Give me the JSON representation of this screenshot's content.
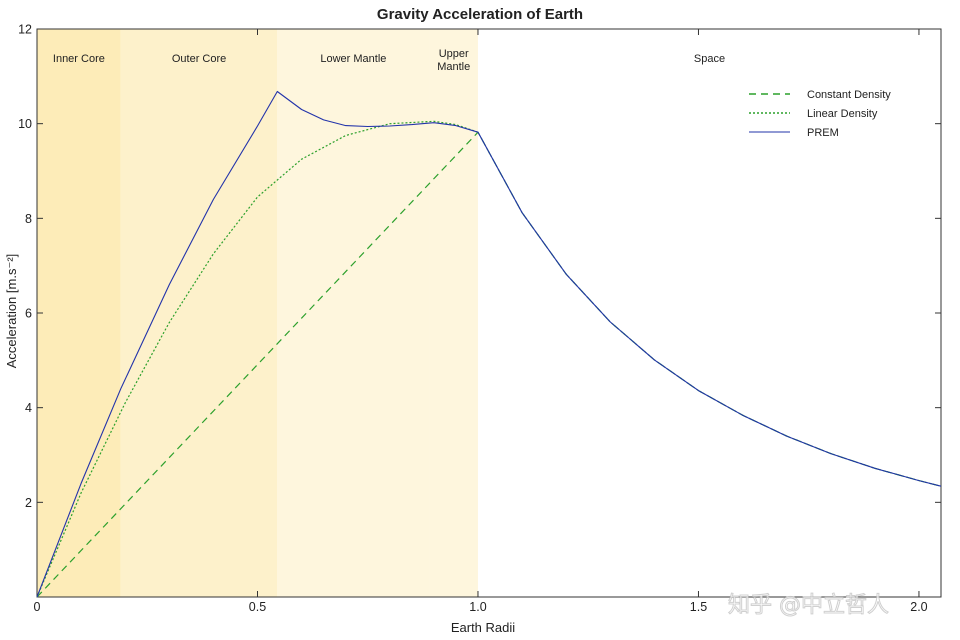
{
  "chart_data": {
    "type": "line",
    "title": "Gravity Acceleration of Earth",
    "xlabel": "Earth Radii",
    "ylabel": "Acceleration [m.s⁻²]",
    "xlim": [
      0,
      2.05
    ],
    "ylim": [
      0,
      12
    ],
    "x_ticks": [
      0,
      0.5,
      1.0,
      1.5,
      2.0
    ],
    "x_tick_labels": [
      "0",
      "0.5",
      "1.0",
      "1.5",
      "2.0"
    ],
    "y_ticks": [
      2,
      4,
      6,
      8,
      10,
      12
    ],
    "y_tick_labels": [
      "2",
      "4",
      "6",
      "8",
      "10",
      "12"
    ],
    "grid": false,
    "legend_position": "top-right",
    "regions": [
      {
        "label": "Inner Core",
        "x0": 0,
        "x1": 0.19,
        "color": "#fdecb8"
      },
      {
        "label": "Outer Core",
        "x0": 0.19,
        "x1": 0.545,
        "color": "#fdf1cb"
      },
      {
        "label": "Lower Mantle",
        "x0": 0.545,
        "x1": 0.89,
        "color": "#fef6dd"
      },
      {
        "label": "Upper Mantle",
        "x0": 0.89,
        "x1": 1.0,
        "color": "#fef6dd"
      },
      {
        "label": "Space",
        "x0": 1.0,
        "x1": 2.05,
        "color": "#ffffff"
      }
    ],
    "series": [
      {
        "name": "Constant Density",
        "style": "dashed",
        "color": "#2ca02c",
        "x": [
          0,
          1.0,
          1.1,
          1.2,
          1.3,
          1.4,
          1.5,
          1.6,
          1.7,
          1.8,
          1.9,
          2.0,
          2.05
        ],
        "y": [
          0,
          9.82,
          8.12,
          6.82,
          5.81,
          5.01,
          4.36,
          3.84,
          3.4,
          3.03,
          2.72,
          2.46,
          2.34
        ]
      },
      {
        "name": "Linear Density",
        "style": "dotted",
        "color": "#2ca02c",
        "x": [
          0,
          0.1,
          0.2,
          0.3,
          0.4,
          0.5,
          0.6,
          0.7,
          0.8,
          0.9,
          0.95,
          1.0,
          1.1,
          1.2,
          1.3,
          1.4,
          1.5,
          1.6,
          1.7,
          1.8,
          1.9,
          2.0,
          2.05
        ],
        "y": [
          0,
          2.2,
          4.1,
          5.8,
          7.25,
          8.45,
          9.25,
          9.75,
          10.0,
          10.05,
          9.98,
          9.82,
          8.12,
          6.82,
          5.81,
          5.01,
          4.36,
          3.84,
          3.4,
          3.03,
          2.72,
          2.46,
          2.34
        ]
      },
      {
        "name": "PREM",
        "style": "solid",
        "color": "#2233aa",
        "x": [
          0,
          0.1,
          0.19,
          0.3,
          0.4,
          0.5,
          0.545,
          0.6,
          0.65,
          0.7,
          0.75,
          0.8,
          0.85,
          0.9,
          0.95,
          1.0,
          1.1,
          1.2,
          1.3,
          1.4,
          1.5,
          1.6,
          1.7,
          1.8,
          1.9,
          2.0,
          2.05
        ],
        "y": [
          0,
          2.4,
          4.4,
          6.6,
          8.4,
          9.95,
          10.68,
          10.3,
          10.08,
          9.96,
          9.94,
          9.95,
          9.98,
          10.02,
          9.96,
          9.82,
          8.12,
          6.82,
          5.81,
          5.01,
          4.36,
          3.84,
          3.4,
          3.03,
          2.72,
          2.46,
          2.34
        ]
      }
    ]
  },
  "watermark": "知乎 @中立哲人"
}
